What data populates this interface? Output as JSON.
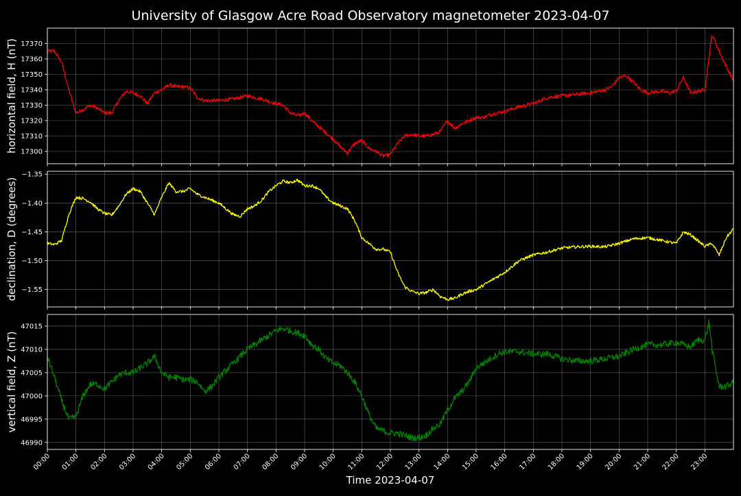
{
  "title": "University of Glasgow Acre Road Observatory magnetometer 2023-04-07",
  "xlabel": "Time 2023-04-07",
  "colors": {
    "background": "#000000",
    "text": "#ffffff",
    "grid": "#666666",
    "axis": "#ffffff"
  },
  "x_ticks": [
    "00:00",
    "01:00",
    "02:00",
    "03:00",
    "04:00",
    "05:00",
    "06:00",
    "07:00",
    "08:00",
    "09:00",
    "10:00",
    "11:00",
    "12:00",
    "13:00",
    "14:00",
    "15:00",
    "16:00",
    "17:00",
    "18:00",
    "19:00",
    "20:00",
    "21:00",
    "22:00",
    "23:00"
  ],
  "chart_data": [
    {
      "type": "line",
      "name": "H",
      "ylabel": "horizontal field, H (nT)",
      "color": "#ff0000",
      "grid": true,
      "xlim": [
        0,
        24
      ],
      "ylim": [
        17292,
        17380
      ],
      "yticks": [
        17300,
        17310,
        17320,
        17330,
        17340,
        17350,
        17360,
        17370
      ],
      "ytick_labels": [
        "17300",
        "17310",
        "17320",
        "17330",
        "17340",
        "17350",
        "17360",
        "17370"
      ],
      "noise": 1.2,
      "x": [
        0,
        0.25,
        0.5,
        0.75,
        1.0,
        1.25,
        1.5,
        1.75,
        2.0,
        2.25,
        2.5,
        2.75,
        3.0,
        3.25,
        3.5,
        3.75,
        4.0,
        4.25,
        4.5,
        4.75,
        5.0,
        5.25,
        5.5,
        5.75,
        6.0,
        6.5,
        7.0,
        7.5,
        8.0,
        8.25,
        8.5,
        8.75,
        9.0,
        9.25,
        9.5,
        9.75,
        10.0,
        10.25,
        10.5,
        10.75,
        11.0,
        11.25,
        11.5,
        11.75,
        12.0,
        12.25,
        12.5,
        12.75,
        13.0,
        13.25,
        13.5,
        13.75,
        14.0,
        14.25,
        14.5,
        14.75,
        15.0,
        15.25,
        15.5,
        15.75,
        16.0,
        16.5,
        17.0,
        17.5,
        18.0,
        18.5,
        19.0,
        19.5,
        19.75,
        20.0,
        20.25,
        20.5,
        20.75,
        21.0,
        21.5,
        21.75,
        22.0,
        22.25,
        22.5,
        22.75,
        23.0,
        23.25,
        23.5,
        23.75,
        24.0
      ],
      "y": [
        17365,
        17365,
        17358,
        17340,
        17325,
        17327,
        17330,
        17328,
        17325,
        17325,
        17333,
        17339,
        17338,
        17336,
        17331,
        17338,
        17340,
        17343,
        17342,
        17342,
        17341,
        17335,
        17333,
        17333,
        17333,
        17334,
        17336,
        17334,
        17331,
        17330,
        17325,
        17323,
        17325,
        17320,
        17316,
        17312,
        17308,
        17303,
        17299,
        17305,
        17307,
        17302,
        17300,
        17297,
        17298,
        17305,
        17310,
        17311,
        17310,
        17310,
        17311,
        17313,
        17320,
        17315,
        17318,
        17320,
        17322,
        17322,
        17324,
        17325,
        17326,
        17329,
        17331,
        17335,
        17336,
        17337,
        17338,
        17340,
        17342,
        17348,
        17349,
        17345,
        17340,
        17338,
        17339,
        17338,
        17339,
        17348,
        17338,
        17339,
        17340,
        17376,
        17365,
        17355,
        17346
      ]
    },
    {
      "type": "line",
      "name": "D",
      "ylabel": "declination, D (degrees)",
      "color": "#ffff00",
      "grid": true,
      "xlim": [
        0,
        24
      ],
      "ylim": [
        -1.58,
        -1.345
      ],
      "yticks": [
        -1.55,
        -1.5,
        -1.45,
        -1.4,
        -1.35
      ],
      "ytick_labels": [
        "−1.55",
        "−1.50",
        "−1.45",
        "−1.40",
        "−1.35"
      ],
      "noise": 0.0025,
      "x": [
        0,
        0.25,
        0.5,
        0.75,
        1.0,
        1.25,
        1.5,
        1.75,
        2.0,
        2.25,
        2.5,
        2.75,
        3.0,
        3.25,
        3.5,
        3.75,
        4.0,
        4.25,
        4.5,
        4.75,
        5.0,
        5.25,
        5.5,
        5.75,
        6.0,
        6.25,
        6.5,
        6.75,
        7.0,
        7.25,
        7.5,
        7.75,
        8.0,
        8.25,
        8.5,
        8.75,
        9.0,
        9.25,
        9.5,
        9.75,
        10.0,
        10.25,
        10.5,
        10.75,
        11.0,
        11.25,
        11.5,
        11.75,
        12.0,
        12.25,
        12.5,
        12.75,
        13.0,
        13.25,
        13.5,
        13.75,
        14.0,
        14.25,
        14.5,
        14.75,
        15.0,
        15.5,
        16.0,
        16.5,
        17.0,
        17.5,
        18.0,
        18.5,
        19.0,
        19.5,
        20.0,
        20.5,
        21.0,
        21.5,
        22.0,
        22.25,
        22.5,
        22.75,
        23.0,
        23.25,
        23.5,
        23.75,
        24.0
      ],
      "y": [
        -1.47,
        -1.472,
        -1.465,
        -1.42,
        -1.39,
        -1.392,
        -1.398,
        -1.41,
        -1.418,
        -1.421,
        -1.405,
        -1.385,
        -1.375,
        -1.38,
        -1.4,
        -1.42,
        -1.39,
        -1.365,
        -1.38,
        -1.38,
        -1.375,
        -1.385,
        -1.39,
        -1.395,
        -1.4,
        -1.41,
        -1.42,
        -1.423,
        -1.41,
        -1.405,
        -1.395,
        -1.38,
        -1.37,
        -1.362,
        -1.365,
        -1.36,
        -1.37,
        -1.37,
        -1.375,
        -1.39,
        -1.4,
        -1.405,
        -1.41,
        -1.43,
        -1.46,
        -1.47,
        -1.48,
        -1.48,
        -1.485,
        -1.52,
        -1.545,
        -1.553,
        -1.557,
        -1.555,
        -1.55,
        -1.562,
        -1.567,
        -1.565,
        -1.558,
        -1.553,
        -1.55,
        -1.535,
        -1.52,
        -1.5,
        -1.49,
        -1.485,
        -1.478,
        -1.476,
        -1.475,
        -1.476,
        -1.47,
        -1.462,
        -1.46,
        -1.465,
        -1.47,
        -1.45,
        -1.455,
        -1.465,
        -1.475,
        -1.47,
        -1.49,
        -1.46,
        -1.445
      ]
    },
    {
      "type": "line",
      "name": "Z",
      "ylabel": "vertical field, Z (nT)",
      "color": "#008000",
      "grid": true,
      "xlim": [
        0,
        24
      ],
      "ylim": [
        46988.5,
        47017.5
      ],
      "yticks": [
        46990,
        46995,
        47000,
        47005,
        47010,
        47015
      ],
      "ytick_labels": [
        "46990",
        "46995",
        "47000",
        "47005",
        "47010",
        "47015"
      ],
      "noise": 0.7,
      "x": [
        0,
        0.25,
        0.5,
        0.75,
        1.0,
        1.25,
        1.5,
        1.75,
        2.0,
        2.25,
        2.5,
        2.75,
        3.0,
        3.25,
        3.5,
        3.75,
        4.0,
        4.25,
        4.5,
        4.75,
        5.0,
        5.25,
        5.5,
        5.75,
        6.0,
        6.5,
        7.0,
        7.5,
        8.0,
        8.25,
        8.5,
        8.75,
        9.0,
        9.25,
        9.5,
        9.75,
        10.0,
        10.25,
        10.5,
        10.75,
        11.0,
        11.25,
        11.5,
        11.75,
        12.0,
        12.25,
        12.5,
        12.75,
        13.0,
        13.25,
        13.5,
        13.75,
        14.0,
        14.25,
        14.5,
        14.75,
        15.0,
        15.25,
        15.5,
        15.75,
        16.0,
        16.5,
        17.0,
        17.5,
        18.0,
        18.5,
        19.0,
        19.5,
        20.0,
        20.5,
        21.0,
        21.5,
        22.0,
        22.25,
        22.5,
        22.75,
        23.0,
        23.15,
        23.25,
        23.5,
        23.75,
        24.0
      ],
      "y": [
        47008.5,
        47004,
        46999,
        46995,
        46995.5,
        47000,
        47002.5,
        47002.5,
        47001.5,
        47003,
        47004.5,
        47005,
        47005,
        47006,
        47007,
        47008.5,
        47005,
        47004,
        47004,
        47003.5,
        47003.5,
        47003,
        47001,
        47002,
        47004,
        47007,
        47010,
        47012,
        47014,
        47014.5,
        47014,
        47013.5,
        47013,
        47011,
        47010,
        47008,
        47007,
        47006.5,
        47005,
        47003,
        47000,
        46996,
        46993,
        46992.5,
        46992,
        46992,
        46991.5,
        46991,
        46991,
        46991.5,
        46993,
        46994,
        46997,
        46999.5,
        47001,
        47003,
        47006,
        47007,
        47008,
        47009,
        47009.5,
        47009.5,
        47009,
        47009,
        47008,
        47007.5,
        47007.5,
        47008,
        47008.5,
        47010,
        47011,
        47011,
        47011.5,
        47011,
        47010.5,
        47012,
        47012,
        47016,
        47010,
        47002,
        47002,
        47003
      ]
    }
  ]
}
